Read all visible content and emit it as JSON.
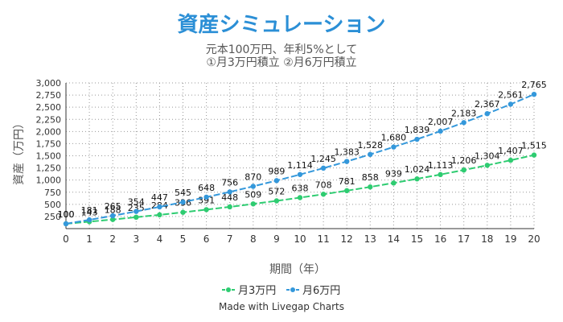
{
  "chart_data": {
    "type": "line",
    "title": "資産シミュレーション",
    "subtitle": [
      "元本100万円、年利5%として",
      "①月3万円積立 ②月6万円積立"
    ],
    "xlabel": "期間（年）",
    "ylabel": "資産（万円）",
    "x": [
      0,
      1,
      2,
      3,
      4,
      5,
      6,
      7,
      8,
      9,
      10,
      11,
      12,
      13,
      14,
      15,
      16,
      17,
      18,
      19,
      20
    ],
    "xlim": [
      0,
      20
    ],
    "ylim": [
      0,
      3000
    ],
    "yticks": [
      250,
      500,
      750,
      1000,
      1250,
      1500,
      1750,
      2000,
      2250,
      2500,
      2750,
      3000
    ],
    "ytick_labels": [
      "250",
      "500",
      "750",
      "1,000",
      "1,250",
      "1,500",
      "1,750",
      "2,000",
      "2,250",
      "2,500",
      "2,750",
      "3,000"
    ],
    "grid": true,
    "legend_position": "bottom",
    "series": [
      {
        "name": "月3万円",
        "color": "#2ecc71",
        "values": [
          100,
          143,
          188,
          235,
          284,
          336,
          391,
          448,
          509,
          572,
          638,
          708,
          781,
          858,
          939,
          1024,
          1113,
          1206,
          1304,
          1407,
          1515
        ],
        "labels": [
          "100",
          "143",
          "188",
          "235",
          "284",
          "336",
          "391",
          "448",
          "509",
          "572",
          "638",
          "708",
          "781",
          "858",
          "939",
          "1,024",
          "1,113",
          "1,206",
          "1,304",
          "1,407",
          "1,515"
        ]
      },
      {
        "name": "月6万円",
        "color": "#3498db",
        "values": [
          100,
          181,
          265,
          354,
          447,
          545,
          648,
          756,
          870,
          989,
          1114,
          1245,
          1383,
          1528,
          1680,
          1839,
          2007,
          2183,
          2367,
          2561,
          2765
        ],
        "labels": [
          "100",
          "181",
          "265",
          "354",
          "447",
          "545",
          "648",
          "756",
          "870",
          "989",
          "1,114",
          "1,245",
          "1,383",
          "1,528",
          "1,680",
          "1,839",
          "2,007",
          "2,183",
          "2,367",
          "2,561",
          "2,765"
        ]
      }
    ]
  },
  "footer": "Made with Livegap Charts"
}
